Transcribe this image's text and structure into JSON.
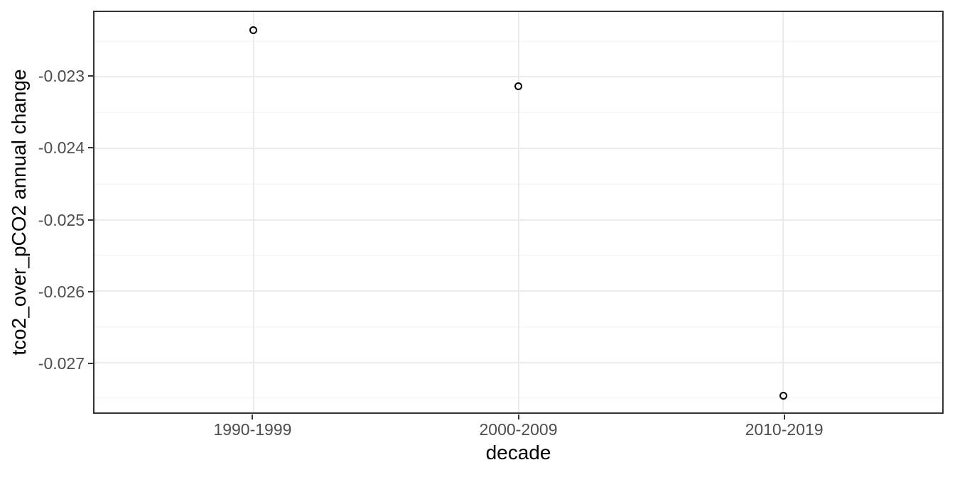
{
  "chart_data": {
    "type": "scatter",
    "categories": [
      "1990-1999",
      "2000-2009",
      "2010-2019"
    ],
    "values": [
      -0.02234,
      -0.02313,
      -0.02747
    ],
    "title": "",
    "xlabel": "decade",
    "ylabel": "tco2_over_pCO2 annual change",
    "ylim": [
      -0.0277,
      -0.02209
    ],
    "yticks": [
      -0.023,
      -0.024,
      -0.025,
      -0.026,
      -0.027
    ],
    "ytick_labels": [
      "-0.023",
      "-0.024",
      "-0.025",
      "-0.026",
      "-0.027"
    ],
    "yticks_minor": [
      -0.0225,
      -0.0235,
      -0.0245,
      -0.0255,
      -0.0265,
      -0.0275
    ],
    "grid": true,
    "legend_position": "none",
    "marker": "open-circle",
    "colors": {
      "background": "#ffffff",
      "panel_border": "#333333",
      "grid_major": "#ebebeb",
      "grid_minor": "#f3f3f3",
      "tick_mark": "#333333",
      "tick_label": "#4d4d4d",
      "axis_title": "#000000",
      "point_stroke": "#000000"
    }
  }
}
